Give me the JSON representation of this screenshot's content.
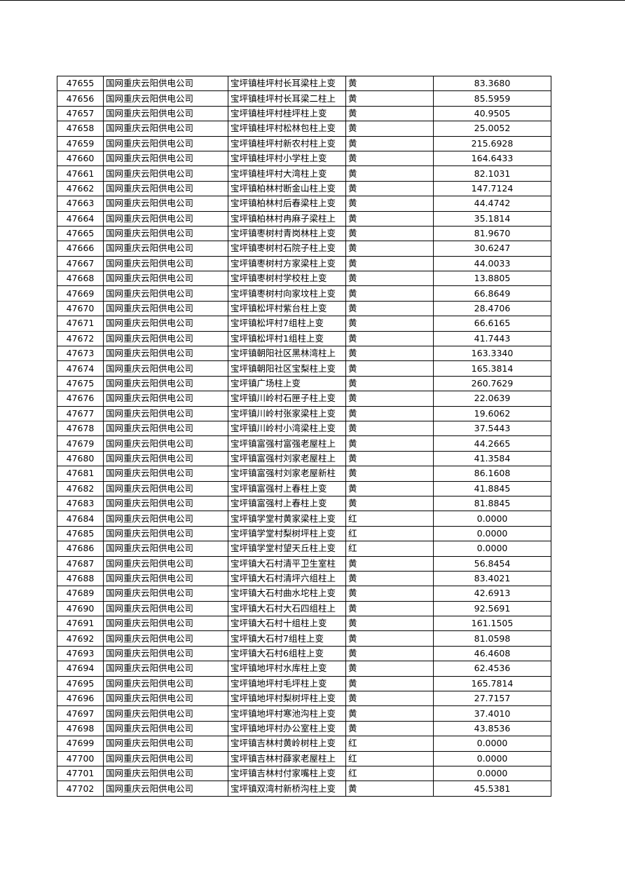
{
  "table": {
    "rows": [
      [
        "47655",
        "国网重庆云阳供电公司",
        "宝坪镇桂坪村长耳梁柱上变",
        "黄",
        "83.3680"
      ],
      [
        "47656",
        "国网重庆云阳供电公司",
        "宝坪镇桂坪村长耳梁二柱上",
        "黄",
        "85.5959"
      ],
      [
        "47657",
        "国网重庆云阳供电公司",
        "宝坪镇桂坪村桂坪柱上变",
        "黄",
        "40.9505"
      ],
      [
        "47658",
        "国网重庆云阳供电公司",
        "宝坪镇桂坪村松林包柱上变",
        "黄",
        "25.0052"
      ],
      [
        "47659",
        "国网重庆云阳供电公司",
        "宝坪镇桂坪村新农村柱上变",
        "黄",
        "215.6928"
      ],
      [
        "47660",
        "国网重庆云阳供电公司",
        "宝坪镇桂坪村小学柱上变",
        "黄",
        "164.6433"
      ],
      [
        "47661",
        "国网重庆云阳供电公司",
        "宝坪镇桂坪村大湾柱上变",
        "黄",
        "82.1031"
      ],
      [
        "47662",
        "国网重庆云阳供电公司",
        "宝坪镇柏林村断金山柱上变",
        "黄",
        "147.7124"
      ],
      [
        "47663",
        "国网重庆云阳供电公司",
        "宝坪镇柏林村后春梁柱上变",
        "黄",
        "44.4742"
      ],
      [
        "47664",
        "国网重庆云阳供电公司",
        "宝坪镇柏林村冉麻子梁柱上",
        "黄",
        "35.1814"
      ],
      [
        "47665",
        "国网重庆云阳供电公司",
        "宝坪镇枣树村青岗林柱上变",
        "黄",
        "81.9670"
      ],
      [
        "47666",
        "国网重庆云阳供电公司",
        "宝坪镇枣树村石院子柱上变",
        "黄",
        "30.6247"
      ],
      [
        "47667",
        "国网重庆云阳供电公司",
        "宝坪镇枣树村方家梁柱上变",
        "黄",
        "44.0033"
      ],
      [
        "47668",
        "国网重庆云阳供电公司",
        "宝坪镇枣树村学校柱上变",
        "黄",
        "13.8805"
      ],
      [
        "47669",
        "国网重庆云阳供电公司",
        "宝坪镇枣树村向家坟柱上变",
        "黄",
        "66.8649"
      ],
      [
        "47670",
        "国网重庆云阳供电公司",
        "宝坪镇松坪村紫台柱上变",
        "黄",
        "28.4706"
      ],
      [
        "47671",
        "国网重庆云阳供电公司",
        "宝坪镇松坪村7组柱上变",
        "黄",
        "66.6165"
      ],
      [
        "47672",
        "国网重庆云阳供电公司",
        "宝坪镇松坪村1组柱上变",
        "黄",
        "41.7443"
      ],
      [
        "47673",
        "国网重庆云阳供电公司",
        "宝坪镇朝阳社区黑林湾柱上",
        "黄",
        "163.3340"
      ],
      [
        "47674",
        "国网重庆云阳供电公司",
        "宝坪镇朝阳社区宝梨柱上变",
        "黄",
        "165.3814"
      ],
      [
        "47675",
        "国网重庆云阳供电公司",
        "宝坪镇广场柱上变",
        "黄",
        "260.7629"
      ],
      [
        "47676",
        "国网重庆云阳供电公司",
        "宝坪镇川岭村石匣子柱上变",
        "黄",
        "22.0639"
      ],
      [
        "47677",
        "国网重庆云阳供电公司",
        "宝坪镇川岭村张家梁柱上变",
        "黄",
        "19.6062"
      ],
      [
        "47678",
        "国网重庆云阳供电公司",
        "宝坪镇川岭村小湾梁柱上变",
        "黄",
        "37.5443"
      ],
      [
        "47679",
        "国网重庆云阳供电公司",
        "宝坪镇富强村富强老屋柱上",
        "黄",
        "44.2665"
      ],
      [
        "47680",
        "国网重庆云阳供电公司",
        "宝坪镇富强村刘家老屋柱上",
        "黄",
        "41.3584"
      ],
      [
        "47681",
        "国网重庆云阳供电公司",
        "宝坪镇富强村刘家老屋新柱",
        "黄",
        "86.1608"
      ],
      [
        "47682",
        "国网重庆云阳供电公司",
        "宝坪镇富强村上春柱上变",
        "黄",
        "41.8845"
      ],
      [
        "47683",
        "国网重庆云阳供电公司",
        "宝坪镇富强村上春柱上变",
        "黄",
        "81.8845"
      ],
      [
        "47684",
        "国网重庆云阳供电公司",
        "宝坪镇学堂村黄家梁柱上变",
        "红",
        "0.0000"
      ],
      [
        "47685",
        "国网重庆云阳供电公司",
        "宝坪镇学堂村梨树坪柱上变",
        "红",
        "0.0000"
      ],
      [
        "47686",
        "国网重庆云阳供电公司",
        "宝坪镇学堂村望天丘柱上变",
        "红",
        "0.0000"
      ],
      [
        "47687",
        "国网重庆云阳供电公司",
        "宝坪镇大石村清平卫生室柱",
        "黄",
        "56.8454"
      ],
      [
        "47688",
        "国网重庆云阳供电公司",
        "宝坪镇大石村清坪六组柱上",
        "黄",
        "83.4021"
      ],
      [
        "47689",
        "国网重庆云阳供电公司",
        "宝坪镇大石村曲水坨柱上变",
        "黄",
        "42.6913"
      ],
      [
        "47690",
        "国网重庆云阳供电公司",
        "宝坪镇大石村大石四组柱上",
        "黄",
        "92.5691"
      ],
      [
        "47691",
        "国网重庆云阳供电公司",
        "宝坪镇大石村十组柱上变",
        "黄",
        "161.1505"
      ],
      [
        "47692",
        "国网重庆云阳供电公司",
        "宝坪镇大石村7组柱上变",
        "黄",
        "81.0598"
      ],
      [
        "47693",
        "国网重庆云阳供电公司",
        "宝坪镇大石村6组柱上变",
        "黄",
        "46.4608"
      ],
      [
        "47694",
        "国网重庆云阳供电公司",
        "宝坪镇地坪村水库柱上变",
        "黄",
        "62.4536"
      ],
      [
        "47695",
        "国网重庆云阳供电公司",
        "宝坪镇地坪村毛坪柱上变",
        "黄",
        "165.7814"
      ],
      [
        "47696",
        "国网重庆云阳供电公司",
        "宝坪镇地坪村梨树坪柱上变",
        "黄",
        "27.7157"
      ],
      [
        "47697",
        "国网重庆云阳供电公司",
        "宝坪镇地坪村寒池沟柱上变",
        "黄",
        "37.4010"
      ],
      [
        "47698",
        "国网重庆云阳供电公司",
        "宝坪镇地坪村办公室柱上变",
        "黄",
        "43.8536"
      ],
      [
        "47699",
        "国网重庆云阳供电公司",
        "宝坪镇吉林村黄岭树柱上变",
        "红",
        "0.0000"
      ],
      [
        "47700",
        "国网重庆云阳供电公司",
        "宝坪镇吉林村薛家老屋柱上",
        "红",
        "0.0000"
      ],
      [
        "47701",
        "国网重庆云阳供电公司",
        "宝坪镇吉林村付家嘴柱上变",
        "红",
        "0.0000"
      ],
      [
        "47702",
        "国网重庆云阳供电公司",
        "宝坪镇双湾村新桥沟柱上变",
        "黄",
        "45.5381"
      ]
    ]
  }
}
